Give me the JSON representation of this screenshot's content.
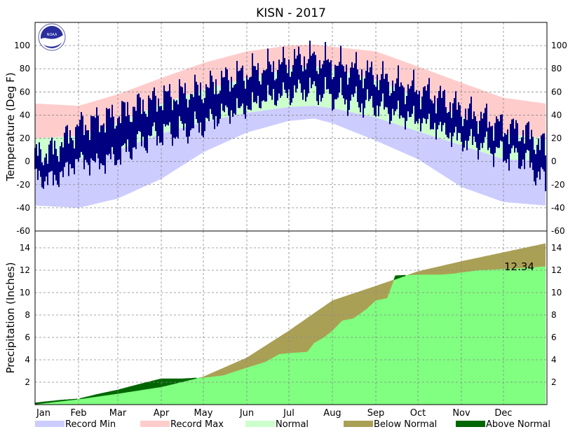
{
  "chart_data": {
    "type": "area",
    "title": "KISN - 2017",
    "months": [
      "Jan",
      "Feb",
      "Mar",
      "Apr",
      "May",
      "Jun",
      "Jul",
      "Aug",
      "Sep",
      "Oct",
      "Nov",
      "Dec"
    ],
    "month_start_days": [
      1,
      32,
      60,
      91,
      121,
      152,
      182,
      213,
      244,
      274,
      305,
      335
    ],
    "days_in_year": 365,
    "temperature_panel": {
      "ylabel": "Temperature (Deg F)",
      "ylim": [
        -60,
        120
      ],
      "yticks": [
        -60,
        -40,
        -20,
        0,
        20,
        40,
        60,
        80,
        100
      ],
      "grid": true,
      "record_max_anchors": [
        [
          1,
          50
        ],
        [
          32,
          48
        ],
        [
          60,
          58
        ],
        [
          91,
          72
        ],
        [
          121,
          85
        ],
        [
          152,
          95
        ],
        [
          182,
          100
        ],
        [
          200,
          101
        ],
        [
          213,
          99
        ],
        [
          244,
          95
        ],
        [
          274,
          82
        ],
        [
          305,
          68
        ],
        [
          335,
          55
        ],
        [
          365,
          50
        ]
      ],
      "normal_high_anchors": [
        [
          1,
          20
        ],
        [
          32,
          22
        ],
        [
          60,
          33
        ],
        [
          91,
          50
        ],
        [
          121,
          62
        ],
        [
          152,
          72
        ],
        [
          182,
          80
        ],
        [
          200,
          82
        ],
        [
          213,
          80
        ],
        [
          244,
          70
        ],
        [
          274,
          56
        ],
        [
          305,
          38
        ],
        [
          335,
          24
        ],
        [
          365,
          20
        ]
      ],
      "normal_low_anchors": [
        [
          1,
          0
        ],
        [
          32,
          2
        ],
        [
          60,
          10
        ],
        [
          91,
          24
        ],
        [
          121,
          34
        ],
        [
          152,
          42
        ],
        [
          182,
          47
        ],
        [
          200,
          48
        ],
        [
          213,
          46
        ],
        [
          244,
          38
        ],
        [
          274,
          26
        ],
        [
          305,
          14
        ],
        [
          335,
          2
        ],
        [
          365,
          0
        ]
      ],
      "record_min_anchors": [
        [
          1,
          -38
        ],
        [
          32,
          -40
        ],
        [
          60,
          -32
        ],
        [
          91,
          -15
        ],
        [
          121,
          8
        ],
        [
          152,
          25
        ],
        [
          182,
          35
        ],
        [
          200,
          37
        ],
        [
          213,
          33
        ],
        [
          244,
          18
        ],
        [
          274,
          2
        ],
        [
          305,
          -22
        ],
        [
          335,
          -35
        ],
        [
          365,
          -38
        ]
      ],
      "observed_high_anchors": [
        [
          1,
          5
        ],
        [
          15,
          10
        ],
        [
          32,
          30
        ],
        [
          45,
          35
        ],
        [
          60,
          40
        ],
        [
          75,
          48
        ],
        [
          91,
          55
        ],
        [
          105,
          58
        ],
        [
          121,
          62
        ],
        [
          135,
          70
        ],
        [
          152,
          76
        ],
        [
          165,
          80
        ],
        [
          182,
          85
        ],
        [
          195,
          90
        ],
        [
          213,
          84
        ],
        [
          228,
          80
        ],
        [
          244,
          74
        ],
        [
          260,
          66
        ],
        [
          274,
          62
        ],
        [
          290,
          55
        ],
        [
          305,
          44
        ],
        [
          320,
          38
        ],
        [
          335,
          30
        ],
        [
          350,
          26
        ],
        [
          365,
          12
        ]
      ],
      "observed_low_anchors": [
        [
          1,
          -10
        ],
        [
          15,
          -12
        ],
        [
          32,
          5
        ],
        [
          45,
          2
        ],
        [
          60,
          8
        ],
        [
          75,
          20
        ],
        [
          91,
          28
        ],
        [
          105,
          30
        ],
        [
          121,
          35
        ],
        [
          135,
          45
        ],
        [
          152,
          50
        ],
        [
          165,
          58
        ],
        [
          182,
          62
        ],
        [
          195,
          66
        ],
        [
          213,
          60
        ],
        [
          228,
          56
        ],
        [
          244,
          52
        ],
        [
          260,
          44
        ],
        [
          274,
          40
        ],
        [
          290,
          32
        ],
        [
          305,
          22
        ],
        [
          320,
          18
        ],
        [
          335,
          10
        ],
        [
          350,
          6
        ],
        [
          365,
          -15
        ]
      ]
    },
    "precip_panel": {
      "ylabel": "Precipitation (Inches)",
      "ylim": [
        0,
        15.5
      ],
      "yticks": [
        2,
        4,
        6,
        8,
        10,
        12,
        14
      ],
      "grid": true,
      "total_label": "12.34",
      "normal_cumulative": [
        [
          1,
          0.05
        ],
        [
          32,
          0.5
        ],
        [
          60,
          1.0
        ],
        [
          91,
          1.6
        ],
        [
          121,
          2.5
        ],
        [
          152,
          4.2
        ],
        [
          182,
          6.6
        ],
        [
          213,
          9.3
        ],
        [
          244,
          10.6
        ],
        [
          274,
          11.9
        ],
        [
          305,
          12.8
        ],
        [
          335,
          13.6
        ],
        [
          365,
          14.4
        ]
      ],
      "observed_cumulative": [
        [
          1,
          0.15
        ],
        [
          20,
          0.4
        ],
        [
          32,
          0.5
        ],
        [
          45,
          0.9
        ],
        [
          60,
          1.3
        ],
        [
          75,
          1.8
        ],
        [
          91,
          2.3
        ],
        [
          106,
          2.3
        ],
        [
          121,
          2.4
        ],
        [
          135,
          2.6
        ],
        [
          152,
          3.3
        ],
        [
          165,
          3.8
        ],
        [
          175,
          4.5
        ],
        [
          182,
          4.6
        ],
        [
          195,
          4.7
        ],
        [
          200,
          5.5
        ],
        [
          207,
          6.0
        ],
        [
          213,
          6.6
        ],
        [
          220,
          7.5
        ],
        [
          228,
          7.7
        ],
        [
          237,
          8.5
        ],
        [
          244,
          9.3
        ],
        [
          252,
          9.5
        ],
        [
          258,
          11.5
        ],
        [
          274,
          11.6
        ],
        [
          290,
          11.6
        ],
        [
          300,
          11.7
        ],
        [
          305,
          11.8
        ],
        [
          318,
          12.0
        ],
        [
          335,
          12.1
        ],
        [
          350,
          12.2
        ],
        [
          365,
          12.34
        ]
      ]
    },
    "legend": [
      {
        "label": "Record Min",
        "color": "#ccccff"
      },
      {
        "label": "Record Max",
        "color": "#ffcccc"
      },
      {
        "label": "Normal",
        "color": "#ccffcc"
      },
      {
        "label": "Below Normal",
        "color": "#aaa055"
      },
      {
        "label": "Above Normal",
        "color": "#006600"
      }
    ],
    "colors": {
      "record_min": "#ccccff",
      "record_max": "#ffcccc",
      "normal": "#ccffcc",
      "observed": "#000080",
      "precip_observed": "#80ff80",
      "below_normal": "#aaa055",
      "above_normal": "#006600"
    }
  },
  "logo": {
    "text": "NOAA",
    "icon": "noaa-logo-icon"
  }
}
